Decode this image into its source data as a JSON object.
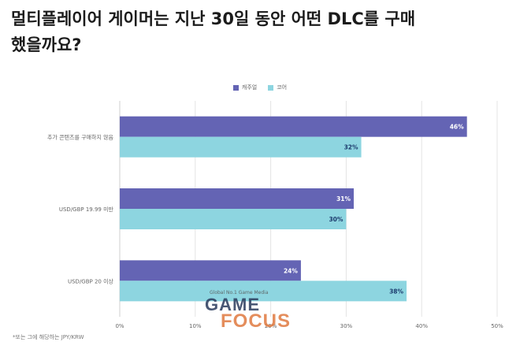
{
  "title": "멀티플레이어 게이머는 지난 30일 동안 어떤 DLC를 구매했을까요?",
  "footnote": "*또는 그에 해당하는 JPY/KRW",
  "watermark": {
    "tagline": "Global No.1 Game Media",
    "line1": "GAME",
    "line2": "FOCUS"
  },
  "colors": {
    "casual": "#6464b4",
    "core": "#8dd5e0",
    "grid": "#e4e4e4",
    "text": "#666666"
  },
  "chart_data": {
    "type": "bar",
    "orientation": "horizontal",
    "categories": [
      "추가 콘텐츠를 구매하지 않음",
      "USD/GBP 19.99 미만",
      "USD/GBP 20 이상"
    ],
    "series": [
      {
        "name": "캐주얼",
        "values": [
          46,
          31,
          24
        ],
        "labels": [
          "46%",
          "31%",
          "24%"
        ]
      },
      {
        "name": "코어",
        "values": [
          32,
          30,
          38
        ],
        "labels": [
          "32%",
          "30%",
          "38%"
        ]
      }
    ],
    "xlim": [
      0,
      50
    ],
    "xticks": [
      0,
      10,
      20,
      30,
      40,
      50
    ],
    "xtick_labels": [
      "0%",
      "10%",
      "20%",
      "30%",
      "40%",
      "50%"
    ],
    "grid": true,
    "legend_position": "top-center"
  }
}
